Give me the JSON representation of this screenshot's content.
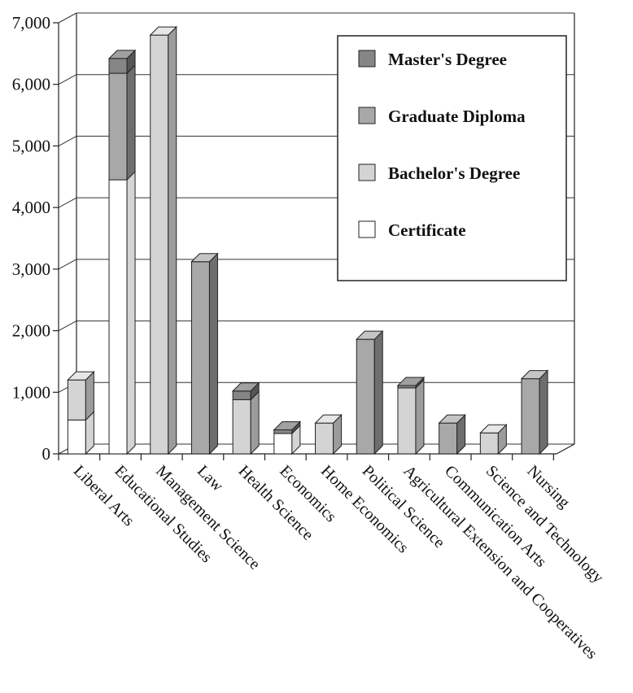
{
  "chart_data": {
    "type": "bar",
    "stacked": true,
    "three_d": true,
    "title": "",
    "xlabel": "",
    "ylabel": "",
    "ylim": [
      0,
      7000
    ],
    "yticks": [
      0,
      1000,
      2000,
      3000,
      4000,
      5000,
      6000,
      7000
    ],
    "ytick_labels": [
      "0",
      "1,000",
      "2,000",
      "3,000",
      "4,000",
      "5,000",
      "6,000",
      "7,000"
    ],
    "grid": true,
    "legend_position": "top-right",
    "categories": [
      "Liberal Arts",
      "Educational Studies",
      "Management Science",
      "Law",
      "Health Science",
      "Economics",
      "Home Economics",
      "Political Science",
      "Agricultural Extension and Cooperatives",
      "Communication Arts",
      "Science and Technology",
      "Nursing"
    ],
    "series": [
      {
        "name": "Certificate",
        "color": "#ffffff",
        "side_color": "#d4d4d4",
        "top_color": "#f0f0f0",
        "values": [
          550,
          4450,
          0,
          0,
          0,
          330,
          0,
          0,
          0,
          0,
          0,
          0
        ]
      },
      {
        "name": "Bachelor's Degree",
        "color": "#d4d4d4",
        "side_color": "#9c9c9c",
        "top_color": "#e6e6e6",
        "values": [
          650,
          0,
          6800,
          0,
          880,
          0,
          500,
          0,
          1070,
          0,
          340,
          0
        ]
      },
      {
        "name": "Graduate Diploma",
        "color": "#a8a8a8",
        "side_color": "#6e6e6e",
        "top_color": "#c4c4c4",
        "values": [
          0,
          1730,
          0,
          3120,
          0,
          0,
          0,
          1860,
          0,
          500,
          0,
          1220
        ]
      },
      {
        "name": "Master's Degree",
        "color": "#858585",
        "side_color": "#555555",
        "top_color": "#a0a0a0",
        "values": [
          0,
          240,
          0,
          0,
          140,
          60,
          0,
          0,
          40,
          0,
          0,
          0
        ]
      }
    ],
    "legend_order": [
      "Master's Degree",
      "Graduate Diploma",
      "Bachelor's Degree",
      "Certificate"
    ]
  }
}
